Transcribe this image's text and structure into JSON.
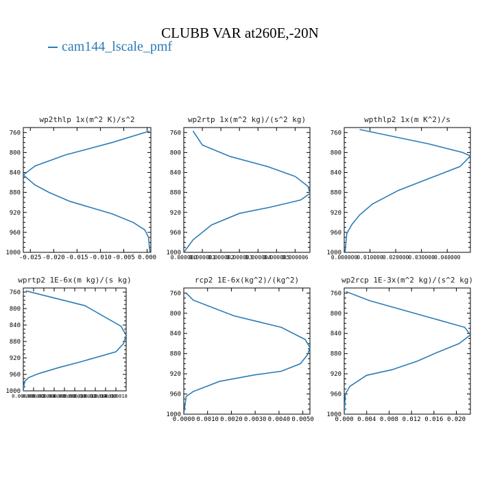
{
  "title": "CLUBB VAR at260E,-20N",
  "legend": {
    "label": "cam144_lscale_pmf",
    "color": "#2a7bb5"
  },
  "chart_data": [
    {
      "type": "line",
      "title": "wp2thlp  1x(m^2 K)/s^2",
      "ylim": [
        1000,
        750
      ],
      "yticks": [
        "760",
        "800",
        "840",
        "880",
        "920",
        "960",
        "1000"
      ],
      "xlim": [
        -0.0265,
        0.0008
      ],
      "xticks": [
        {
          "v": -0.025,
          "label": "-0.025"
        },
        {
          "v": -0.02,
          "label": "-0.020"
        },
        {
          "v": -0.015,
          "label": "-0.015"
        },
        {
          "v": -0.01,
          "label": "-0.010"
        },
        {
          "v": -0.005,
          "label": "-0.005"
        },
        {
          "v": 0.0,
          "label": "0.000"
        }
      ],
      "series": [
        {
          "x": [
            0.0005,
            -0.0075,
            -0.0175,
            -0.024,
            -0.0265,
            -0.024,
            -0.021,
            -0.0165,
            -0.0075,
            -0.003,
            -0.0005,
            0.0003,
            0.0006
          ],
          "y": [
            757,
            780,
            805,
            827,
            845,
            865,
            880,
            898,
            923,
            940,
            955,
            970,
            1000
          ]
        }
      ]
    },
    {
      "type": "line",
      "title": "wp2rtp  1x(m^2 kg)/(s^2 kg)",
      "ylim": [
        1000,
        750
      ],
      "yticks": [
        "760",
        "800",
        "840",
        "880",
        "920",
        "960",
        "1000"
      ],
      "xlim": [
        0,
        6.8e-06
      ],
      "xticks": [
        {
          "v": 0,
          "label": "0.000000"
        },
        {
          "v": 1e-06,
          "label": "0.000001"
        },
        {
          "v": 2e-06,
          "label": "0.000002"
        },
        {
          "v": 3e-06,
          "label": "0.000003"
        },
        {
          "v": 4e-06,
          "label": "0.000004"
        },
        {
          "v": 5e-06,
          "label": "0.000005"
        },
        {
          "v": 6e-06,
          "label": "0.000006"
        }
      ],
      "series": [
        {
          "x": [
            5e-07,
            1e-06,
            2.5e-06,
            4.5e-06,
            6e-06,
            6.7e-06,
            6.8e-06,
            6.3e-06,
            4.6e-06,
            3e-06,
            1.5e-06,
            5e-07,
            0.0
          ],
          "y": [
            757,
            785,
            808,
            828,
            848,
            868,
            882,
            895,
            910,
            922,
            945,
            975,
            1000
          ]
        }
      ]
    },
    {
      "type": "line",
      "title": "wpthlp2  1x(m K^2)/s",
      "ylim": [
        1000,
        750
      ],
      "yticks": [
        "760",
        "800",
        "840",
        "880",
        "920",
        "960",
        "1000"
      ],
      "xlim": [
        0,
        0.049
      ],
      "xticks": [
        {
          "v": 0,
          "label": "0.000000"
        },
        {
          "v": 0.01,
          "label": "0.010000"
        },
        {
          "v": 0.02,
          "label": "0.020000"
        },
        {
          "v": 0.03,
          "label": "0.030000"
        },
        {
          "v": 0.04,
          "label": "0.040000"
        }
      ],
      "series": [
        {
          "x": [
            0.006,
            0.033,
            0.046,
            0.049,
            0.045,
            0.034,
            0.021,
            0.011,
            0.006,
            0.003,
            0.001,
            0.0003
          ],
          "y": [
            754,
            783,
            800,
            807,
            828,
            850,
            876,
            903,
            925,
            944,
            962,
            1000
          ]
        }
      ]
    },
    {
      "type": "line",
      "title": "wprtp2  1E-6x(m kg)/(s kg)",
      "ylim": [
        1000,
        750
      ],
      "yticks": [
        "760",
        "800",
        "840",
        "880",
        "920",
        "960",
        "1000"
      ],
      "xlim": [
        0,
        2e-05
      ],
      "xticks": [
        {
          "v": 0,
          "label": "0.000000"
        },
        {
          "v": 2e-06,
          "label": "0.000002"
        },
        {
          "v": 4e-06,
          "label": "0.000004"
        },
        {
          "v": 6e-06,
          "label": "0.000006"
        },
        {
          "v": 8e-06,
          "label": "0.000008"
        },
        {
          "v": 1e-05,
          "label": "0.000010"
        },
        {
          "v": 1.2e-05,
          "label": "0.000012"
        },
        {
          "v": 1.4e-05,
          "label": "0.000014"
        },
        {
          "v": 1.6e-05,
          "label": "0.000016"
        },
        {
          "v": 1.8e-05,
          "label": "0.000018"
        }
      ],
      "series": [
        {
          "x": [
            5e-07,
            1.2e-05,
            1.9e-05,
            2e-05,
            1.95e-05,
            1.8e-05,
            1.1e-05,
            7e-06,
            3e-06,
            1e-06,
            2e-07,
            0.0
          ],
          "y": [
            757,
            793,
            843,
            865,
            885,
            905,
            930,
            943,
            958,
            968,
            978,
            1000
          ]
        }
      ]
    },
    {
      "type": "line",
      "title": "rcp2  1E-6x(kg^2)/(kg^2)",
      "ylim": [
        1000,
        750
      ],
      "yticks": [
        "760",
        "800",
        "840",
        "880",
        "920",
        "960",
        "1000"
      ],
      "xlim": [
        0,
        0.0053
      ],
      "xticks": [
        {
          "v": 0,
          "label": "0.0000"
        },
        {
          "v": 0.001,
          "label": "0.0010"
        },
        {
          "v": 0.002,
          "label": "0.0020"
        },
        {
          "v": 0.003,
          "label": "0.0030"
        },
        {
          "v": 0.004,
          "label": "0.0040"
        },
        {
          "v": 0.005,
          "label": "0.0050"
        }
      ],
      "series": [
        {
          "x": [
            0.0001,
            0.0004,
            0.0021,
            0.0041,
            0.0051,
            0.0053,
            0.0052,
            0.0049,
            0.0041,
            0.003,
            0.0015,
            0.0004,
            0.0001,
            0.0
          ],
          "y": [
            760,
            774,
            805,
            828,
            852,
            868,
            882,
            900,
            915,
            922,
            935,
            955,
            965,
            1000
          ]
        }
      ]
    },
    {
      "type": "line",
      "title": "wp2rcp  1E-3x(m^2 kg)/(s^2 kg)",
      "ylim": [
        1000,
        750
      ],
      "yticks": [
        "760",
        "800",
        "840",
        "880",
        "920",
        "960",
        "1000"
      ],
      "xlim": [
        0,
        0.0225
      ],
      "xticks": [
        {
          "v": 0,
          "label": "0.000"
        },
        {
          "v": 0.004,
          "label": "0.004"
        },
        {
          "v": 0.008,
          "label": "0.008"
        },
        {
          "v": 0.012,
          "label": "0.012"
        },
        {
          "v": 0.016,
          "label": "0.016"
        },
        {
          "v": 0.02,
          "label": "0.020"
        }
      ],
      "series": [
        {
          "x": [
            0.0003,
            0.0045,
            0.0215,
            0.0225,
            0.0205,
            0.0165,
            0.013,
            0.0085,
            0.004,
            0.001,
            0.0002,
            0.0
          ],
          "y": [
            757,
            775,
            828,
            843,
            860,
            878,
            895,
            912,
            923,
            945,
            960,
            1000
          ]
        }
      ]
    }
  ]
}
